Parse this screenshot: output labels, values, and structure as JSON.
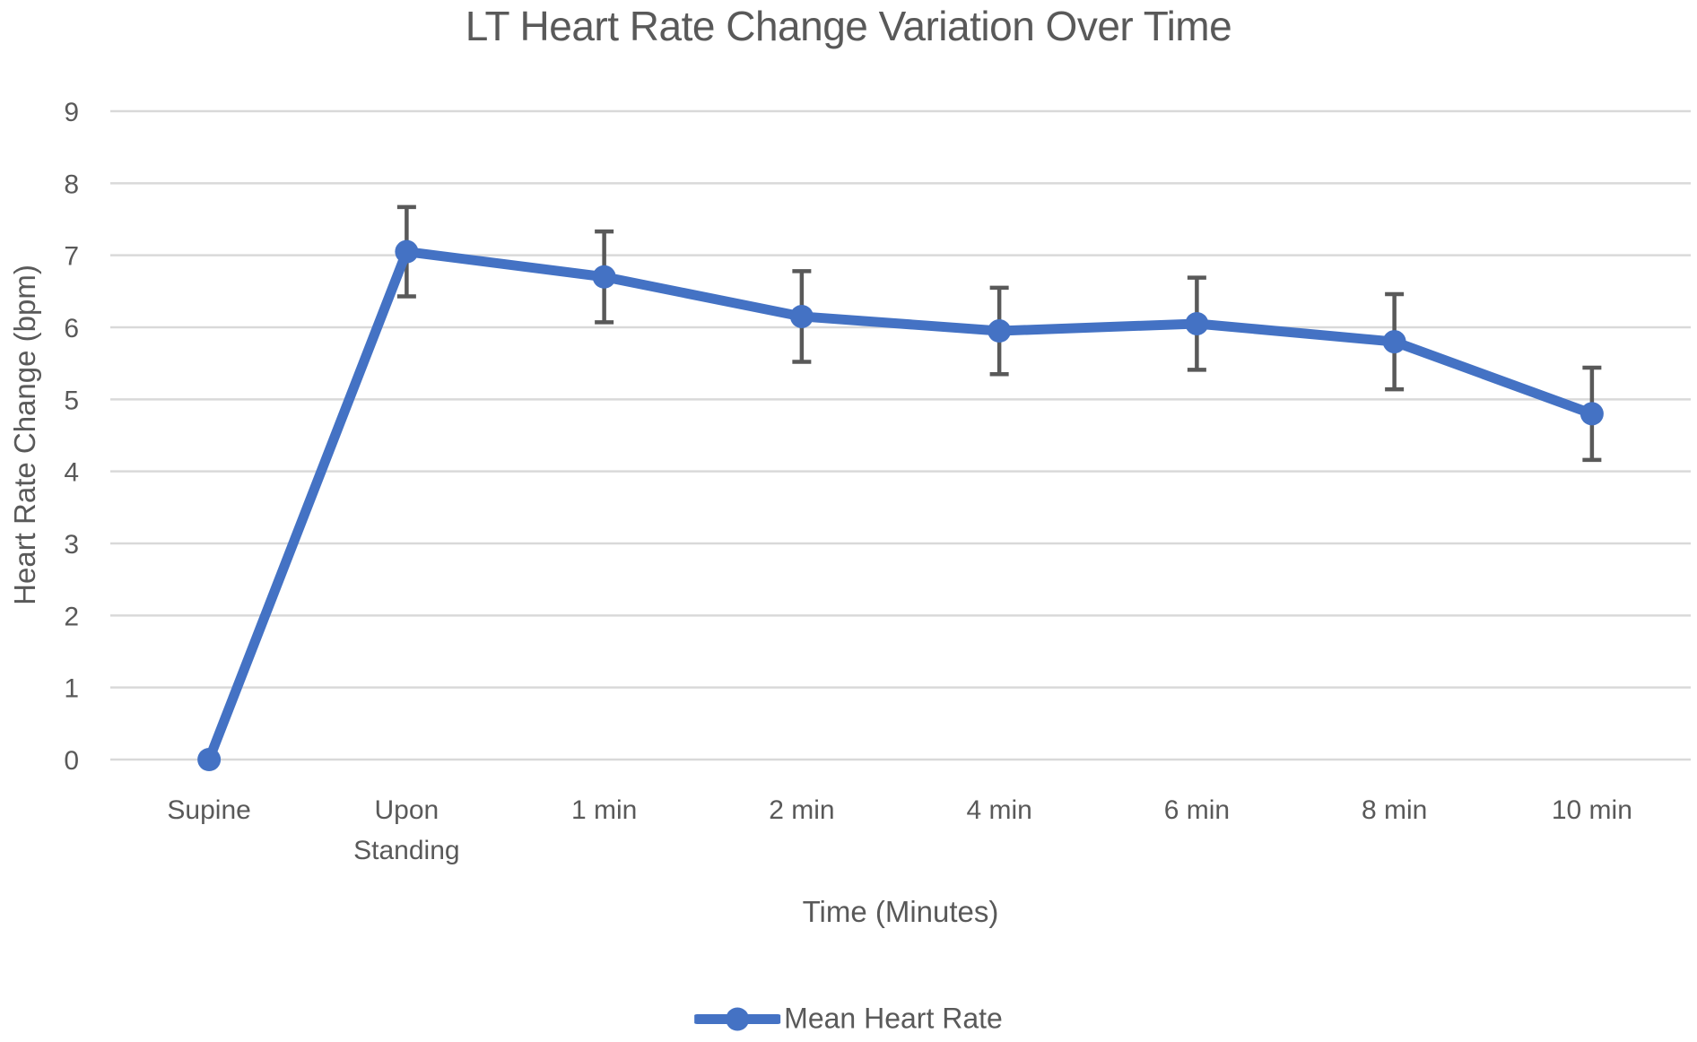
{
  "chart": {
    "title": "LT Heart Rate Change Variation Over Time",
    "xlabel": "Time (Minutes)",
    "ylabel": "Heart Rate Change (bpm)",
    "legend": "Mean Heart Rate"
  },
  "chart_data": {
    "type": "line",
    "title": "LT Heart Rate Change Variation Over Time",
    "xlabel": "Time (Minutes)",
    "ylabel": "Heart Rate Change (bpm)",
    "categories": [
      "Supine",
      "Upon Standing",
      "1 min",
      "2 min",
      "4 min",
      "6 min",
      "8 min",
      "10 min"
    ],
    "series": [
      {
        "name": "Mean Heart Rate",
        "values": [
          0,
          7.05,
          6.7,
          6.15,
          5.95,
          6.05,
          5.8,
          4.8
        ],
        "error_bars": [
          null,
          0.62,
          0.63,
          0.63,
          0.6,
          0.64,
          0.66,
          0.64
        ]
      }
    ],
    "ylim": [
      0,
      9
    ],
    "y_ticks": [
      0,
      1,
      2,
      3,
      4,
      5,
      6,
      7,
      8,
      9
    ],
    "grid": true,
    "legend_position": "bottom",
    "legend_entries": [
      "Mean Heart Rate"
    ],
    "colors": {
      "series": "#4472C4",
      "error_bar": "#595959",
      "gridline": "#D9D9D9",
      "text": "#595959"
    }
  }
}
